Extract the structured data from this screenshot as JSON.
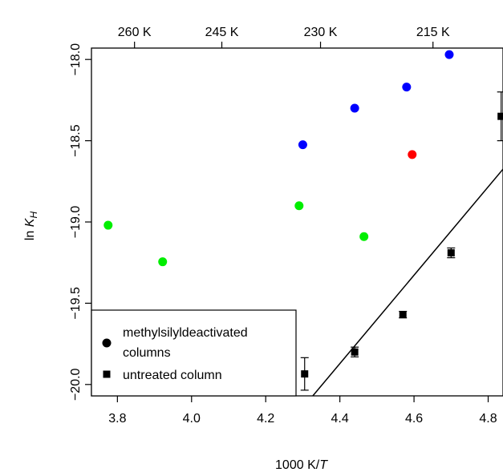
{
  "chart_data": {
    "type": "scatter",
    "title": "",
    "xlabel_prefix": "1000 K/",
    "xlabel_var": "T",
    "ylabel_prefix": "ln ",
    "ylabel_var": "K",
    "ylabel_sub": "H",
    "xlim": [
      3.73,
      4.84
    ],
    "ylim": [
      -20.07,
      -17.93
    ],
    "x_ticks": [
      3.8,
      4.0,
      4.2,
      4.4,
      4.6,
      4.8
    ],
    "x_tick_labels": [
      "3.8",
      "4.0",
      "4.2",
      "4.4",
      "4.6",
      "4.8"
    ],
    "y_ticks": [
      -18.0,
      -18.5,
      -19.0,
      -19.5,
      -20.0
    ],
    "y_tick_labels": [
      "−18.0",
      "−18.5",
      "−19.0",
      "−19.5",
      "−20.0"
    ],
    "top_axis": {
      "temperatures_K": [
        260,
        245,
        230,
        215
      ],
      "labels": [
        "260 K",
        "245 K",
        "230 K",
        "215 K"
      ]
    },
    "grid": false,
    "legend_position": "bottom-left",
    "legend": [
      {
        "label": "methylsilyldeactivated",
        "label_cont": "columns",
        "marker": "circle"
      },
      {
        "label": "untreated column",
        "marker": "square"
      }
    ],
    "series": [
      {
        "marker": "circle",
        "color": "#00ee00",
        "x": [
          3.775,
          3.922,
          4.29,
          4.465
        ],
        "y": [
          -19.02,
          -19.245,
          -18.9,
          -19.09
        ]
      },
      {
        "marker": "circle",
        "color": "#0000ff",
        "x": [
          4.3,
          4.44,
          4.58,
          4.695
        ],
        "y": [
          -18.525,
          -18.3,
          -18.17,
          -17.97
        ]
      },
      {
        "marker": "circle",
        "color": "#ff0000",
        "x": [
          4.595
        ],
        "y": [
          -18.585
        ]
      },
      {
        "marker": "square",
        "color": "#000000",
        "x": [
          4.305,
          4.44,
          4.57,
          4.7,
          4.835
        ],
        "y": [
          -19.935,
          -19.8,
          -19.57,
          -19.19,
          -18.35
        ],
        "err": [
          0.1,
          0.03,
          0.02,
          0.03,
          0.15
        ]
      }
    ],
    "fit_line": {
      "x": [
        4.327,
        4.84
      ],
      "y": [
        -20.07,
        -18.675
      ]
    }
  }
}
